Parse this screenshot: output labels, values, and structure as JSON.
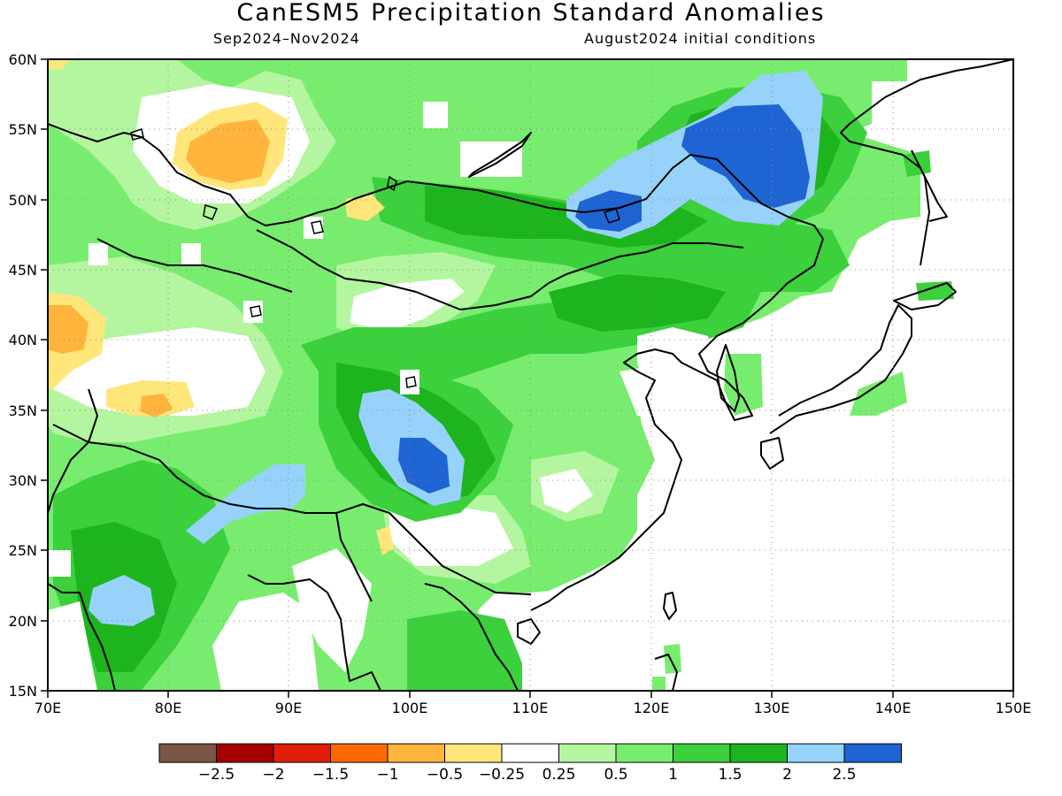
{
  "header": {
    "title": "CanESM5 Precipitation Standard Anomalies",
    "period": "Sep2024–Nov2024",
    "init": "August2024 initial conditions"
  },
  "map": {
    "lon_range": [
      70,
      150
    ],
    "lat_range": [
      15,
      60
    ],
    "lat_ticks": [
      "15N",
      "20N",
      "25N",
      "30N",
      "35N",
      "40N",
      "45N",
      "50N",
      "55N",
      "60N"
    ],
    "lon_ticks": [
      "70E",
      "80E",
      "90E",
      "100E",
      "110E",
      "120E",
      "130E",
      "140E",
      "150E"
    ],
    "gridlines": "dotted"
  },
  "colorbar": {
    "colors": [
      "#7b5546",
      "#a50000",
      "#e01e0a",
      "#ff6a00",
      "#ffb43c",
      "#ffe67a",
      "#ffffff",
      "#b4f5a0",
      "#78ec6e",
      "#3cd03c",
      "#1eb41e",
      "#96d2fa",
      "#1e64d2"
    ],
    "labels": [
      "−2.5",
      "−2",
      "−1.5",
      "−1",
      "−0.5",
      "−0.25",
      "0.25",
      "0.5",
      "1",
      "1.5",
      "2",
      "2.5"
    ]
  },
  "legend_colors": {
    "land_fill": "#78ec6e",
    "coast": "#000000"
  }
}
